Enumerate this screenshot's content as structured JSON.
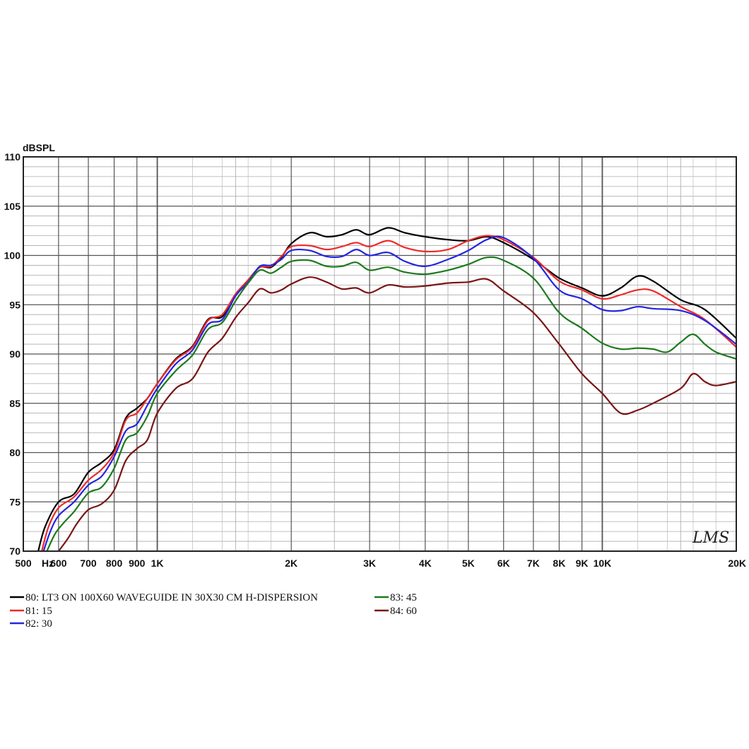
{
  "chart_data": {
    "type": "line",
    "ylabel": "dBSPL",
    "xscale": "log",
    "xlim": [
      500,
      20000
    ],
    "ylim": [
      70,
      110
    ],
    "grid": true,
    "y_ticks": [
      {
        "value": 70,
        "label": "70"
      },
      {
        "value": 75,
        "label": "75"
      },
      {
        "value": 80,
        "label": "80"
      },
      {
        "value": 85,
        "label": "85"
      },
      {
        "value": 90,
        "label": "90"
      },
      {
        "value": 95,
        "label": "95"
      },
      {
        "value": 100,
        "label": "100"
      },
      {
        "value": 105,
        "label": "105"
      },
      {
        "value": 110,
        "label": "110"
      }
    ],
    "x_ticks": [
      {
        "value": 500,
        "label": "500"
      },
      {
        "value": 600,
        "label": "600"
      },
      {
        "value": 700,
        "label": "700"
      },
      {
        "value": 800,
        "label": "800"
      },
      {
        "value": 900,
        "label": "900"
      },
      {
        "value": 1000,
        "label": "1K"
      },
      {
        "value": 2000,
        "label": "2K"
      },
      {
        "value": 3000,
        "label": "3K"
      },
      {
        "value": 4000,
        "label": "4K"
      },
      {
        "value": 5000,
        "label": "5K"
      },
      {
        "value": 6000,
        "label": "6K"
      },
      {
        "value": 7000,
        "label": "7K"
      },
      {
        "value": 8000,
        "label": "8K"
      },
      {
        "value": 9000,
        "label": "9K"
      },
      {
        "value": 10000,
        "label": "10K"
      },
      {
        "value": 20000,
        "label": "20K"
      }
    ],
    "x_unit_label": "Hz",
    "watermark": "LMS",
    "series": [
      {
        "name": "80: LT3 ON 100X60 WAVEGUIDE IN 30X30 CM H-DISPERSION",
        "color": "#000000",
        "points": [
          [
            540,
            70
          ],
          [
            560,
            72.5
          ],
          [
            600,
            75
          ],
          [
            650,
            75.8
          ],
          [
            700,
            78
          ],
          [
            750,
            79
          ],
          [
            800,
            80.3
          ],
          [
            850,
            83.5
          ],
          [
            900,
            84.5
          ],
          [
            950,
            85.5
          ],
          [
            1000,
            87
          ],
          [
            1100,
            89.5
          ],
          [
            1200,
            90.8
          ],
          [
            1300,
            93.5
          ],
          [
            1400,
            93.8
          ],
          [
            1500,
            96
          ],
          [
            1600,
            97.5
          ],
          [
            1700,
            98.8
          ],
          [
            1800,
            98.8
          ],
          [
            1900,
            99.8
          ],
          [
            2000,
            101.2
          ],
          [
            2200,
            102.3
          ],
          [
            2400,
            101.9
          ],
          [
            2600,
            102.1
          ],
          [
            2800,
            102.6
          ],
          [
            3000,
            102.1
          ],
          [
            3300,
            102.8
          ],
          [
            3600,
            102.3
          ],
          [
            4000,
            101.9
          ],
          [
            4500,
            101.6
          ],
          [
            5000,
            101.5
          ],
          [
            5500,
            101.9
          ],
          [
            6000,
            101.3
          ],
          [
            7000,
            99.6
          ],
          [
            8000,
            97.7
          ],
          [
            9000,
            96.7
          ],
          [
            10000,
            95.9
          ],
          [
            11000,
            96.7
          ],
          [
            12000,
            97.9
          ],
          [
            13000,
            97.4
          ],
          [
            15000,
            95.5
          ],
          [
            17000,
            94.5
          ],
          [
            20000,
            91.6
          ]
        ]
      },
      {
        "name": "81: 15",
        "color": "#ee2a2a",
        "points": [
          [
            550,
            70
          ],
          [
            570,
            72.5
          ],
          [
            600,
            74.4
          ],
          [
            650,
            75.5
          ],
          [
            700,
            77.2
          ],
          [
            750,
            78.3
          ],
          [
            800,
            80
          ],
          [
            850,
            83.3
          ],
          [
            900,
            84
          ],
          [
            950,
            85.5
          ],
          [
            1000,
            87
          ],
          [
            1100,
            89.4
          ],
          [
            1200,
            90.7
          ],
          [
            1300,
            93.4
          ],
          [
            1400,
            94
          ],
          [
            1500,
            96.1
          ],
          [
            1600,
            97.5
          ],
          [
            1700,
            98.8
          ],
          [
            1800,
            98.9
          ],
          [
            1900,
            99.9
          ],
          [
            2000,
            100.9
          ],
          [
            2200,
            101
          ],
          [
            2400,
            100.6
          ],
          [
            2600,
            100.9
          ],
          [
            2800,
            101.3
          ],
          [
            3000,
            100.9
          ],
          [
            3300,
            101.5
          ],
          [
            3600,
            100.8
          ],
          [
            4000,
            100.4
          ],
          [
            4500,
            100.6
          ],
          [
            5000,
            101.5
          ],
          [
            5500,
            102
          ],
          [
            6000,
            101.6
          ],
          [
            7000,
            99.8
          ],
          [
            8000,
            97.4
          ],
          [
            9000,
            96.5
          ],
          [
            10000,
            95.6
          ],
          [
            11000,
            96
          ],
          [
            12000,
            96.5
          ],
          [
            13000,
            96.4
          ],
          [
            15000,
            94.8
          ],
          [
            17000,
            93.5
          ],
          [
            20000,
            90.7
          ]
        ]
      },
      {
        "name": "82: 30",
        "color": "#2525e0",
        "points": [
          [
            555,
            70
          ],
          [
            575,
            72
          ],
          [
            600,
            73.6
          ],
          [
            650,
            75
          ],
          [
            700,
            76.7
          ],
          [
            750,
            77.6
          ],
          [
            800,
            79.6
          ],
          [
            850,
            82.2
          ],
          [
            900,
            82.9
          ],
          [
            950,
            84.8
          ],
          [
            1000,
            86.5
          ],
          [
            1100,
            89
          ],
          [
            1200,
            90.4
          ],
          [
            1300,
            93
          ],
          [
            1400,
            93.5
          ],
          [
            1500,
            95.9
          ],
          [
            1600,
            97.3
          ],
          [
            1700,
            98.9
          ],
          [
            1800,
            99
          ],
          [
            1900,
            99.6
          ],
          [
            2000,
            100.5
          ],
          [
            2200,
            100.5
          ],
          [
            2400,
            99.9
          ],
          [
            2600,
            99.9
          ],
          [
            2800,
            100.6
          ],
          [
            3000,
            100
          ],
          [
            3300,
            100.3
          ],
          [
            3600,
            99.4
          ],
          [
            4000,
            98.9
          ],
          [
            4500,
            99.6
          ],
          [
            5000,
            100.5
          ],
          [
            5500,
            101.6
          ],
          [
            6000,
            101.8
          ],
          [
            7000,
            99.7
          ],
          [
            8000,
            96.5
          ],
          [
            9000,
            95.6
          ],
          [
            10000,
            94.5
          ],
          [
            11000,
            94.4
          ],
          [
            12000,
            94.8
          ],
          [
            13000,
            94.6
          ],
          [
            15000,
            94.4
          ],
          [
            17000,
            93.4
          ],
          [
            20000,
            91
          ]
        ]
      },
      {
        "name": "83: 45",
        "color": "#1c7a1c",
        "points": [
          [
            565,
            70
          ],
          [
            590,
            71.8
          ],
          [
            620,
            73
          ],
          [
            650,
            74
          ],
          [
            700,
            75.9
          ],
          [
            750,
            76.5
          ],
          [
            800,
            78.4
          ],
          [
            850,
            81.3
          ],
          [
            900,
            82
          ],
          [
            950,
            83.7
          ],
          [
            1000,
            86
          ],
          [
            1100,
            88.3
          ],
          [
            1200,
            89.9
          ],
          [
            1300,
            92.5
          ],
          [
            1400,
            93.2
          ],
          [
            1500,
            95.4
          ],
          [
            1600,
            97.2
          ],
          [
            1700,
            98.5
          ],
          [
            1800,
            98.2
          ],
          [
            1900,
            98.8
          ],
          [
            2000,
            99.4
          ],
          [
            2200,
            99.5
          ],
          [
            2400,
            98.9
          ],
          [
            2600,
            98.9
          ],
          [
            2800,
            99.3
          ],
          [
            3000,
            98.5
          ],
          [
            3300,
            98.8
          ],
          [
            3600,
            98.3
          ],
          [
            4000,
            98.1
          ],
          [
            4500,
            98.5
          ],
          [
            5000,
            99.1
          ],
          [
            5500,
            99.8
          ],
          [
            6000,
            99.5
          ],
          [
            7000,
            97.7
          ],
          [
            8000,
            94.2
          ],
          [
            9000,
            92.6
          ],
          [
            10000,
            91.1
          ],
          [
            11000,
            90.5
          ],
          [
            12000,
            90.6
          ],
          [
            13000,
            90.5
          ],
          [
            14000,
            90.2
          ],
          [
            15000,
            91.2
          ],
          [
            16000,
            92
          ],
          [
            17000,
            91
          ],
          [
            18000,
            90.2
          ],
          [
            20000,
            89.5
          ]
        ]
      },
      {
        "name": "84: 60",
        "color": "#7a1515",
        "points": [
          [
            600,
            70
          ],
          [
            630,
            71.3
          ],
          [
            660,
            72.8
          ],
          [
            700,
            74.2
          ],
          [
            750,
            74.8
          ],
          [
            800,
            76.2
          ],
          [
            850,
            79.2
          ],
          [
            900,
            80.4
          ],
          [
            950,
            81.3
          ],
          [
            1000,
            84
          ],
          [
            1100,
            86.5
          ],
          [
            1200,
            87.5
          ],
          [
            1300,
            90.2
          ],
          [
            1400,
            91.6
          ],
          [
            1500,
            93.7
          ],
          [
            1600,
            95.2
          ],
          [
            1700,
            96.6
          ],
          [
            1800,
            96.2
          ],
          [
            1900,
            96.5
          ],
          [
            2000,
            97.1
          ],
          [
            2200,
            97.8
          ],
          [
            2400,
            97.3
          ],
          [
            2600,
            96.6
          ],
          [
            2800,
            96.7
          ],
          [
            3000,
            96.2
          ],
          [
            3300,
            97
          ],
          [
            3600,
            96.8
          ],
          [
            4000,
            96.9
          ],
          [
            4500,
            97.2
          ],
          [
            5000,
            97.3
          ],
          [
            5500,
            97.6
          ],
          [
            6000,
            96.4
          ],
          [
            7000,
            94.2
          ],
          [
            8000,
            91
          ],
          [
            9000,
            88
          ],
          [
            10000,
            86
          ],
          [
            11000,
            84
          ],
          [
            12000,
            84.3
          ],
          [
            13000,
            85
          ],
          [
            15000,
            86.5
          ],
          [
            16000,
            88
          ],
          [
            17000,
            87.2
          ],
          [
            18000,
            86.8
          ],
          [
            20000,
            87.2
          ]
        ]
      }
    ]
  }
}
